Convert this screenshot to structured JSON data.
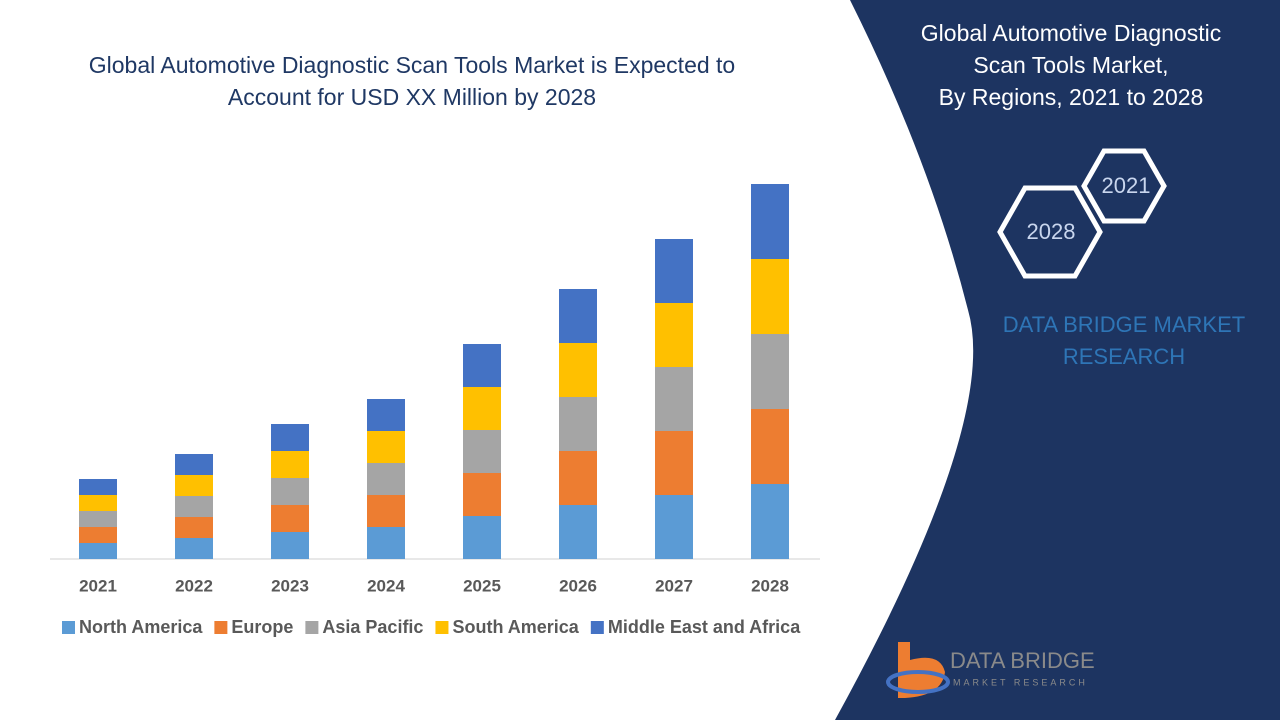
{
  "chart_data": {
    "type": "stacked-bar",
    "title": [
      "Global Automotive Diagnostic Scan Tools Market is Expected to",
      "Account for USD XX Million  by 2028"
    ],
    "categories": [
      "2021",
      "2022",
      "2023",
      "2024",
      "2025",
      "2026",
      "2027",
      "2028"
    ],
    "series": [
      {
        "name": "North America",
        "color": "#5b9bd5",
        "values": [
          16,
          21,
          27,
          32,
          43,
          54,
          64,
          75
        ]
      },
      {
        "name": "Europe",
        "color": "#ed7d31",
        "values": [
          16,
          21,
          27,
          32,
          43,
          54,
          64,
          75
        ]
      },
      {
        "name": "Asia Pacific",
        "color": "#a5a5a5",
        "values": [
          16,
          21,
          27,
          32,
          43,
          54,
          64,
          75
        ]
      },
      {
        "name": "South America",
        "color": "#ffc000",
        "values": [
          16,
          21,
          27,
          32,
          43,
          54,
          64,
          75
        ]
      },
      {
        "name": "Middle East and Africa",
        "color": "#4472c4",
        "values": [
          16,
          21,
          27,
          32,
          43,
          54,
          64,
          75
        ]
      }
    ],
    "legend": "bottom"
  },
  "panel": {
    "title": [
      "Global Automotive Diagnostic",
      "Scan Tools Market,",
      "By Regions, 2021 to 2028"
    ],
    "hexagons": [
      "2021",
      "2028"
    ],
    "brand": [
      "DATA BRIDGE MARKET",
      "RESEARCH"
    ],
    "logo": [
      "DATA BRIDGE",
      "MARKET RESEARCH"
    ]
  }
}
